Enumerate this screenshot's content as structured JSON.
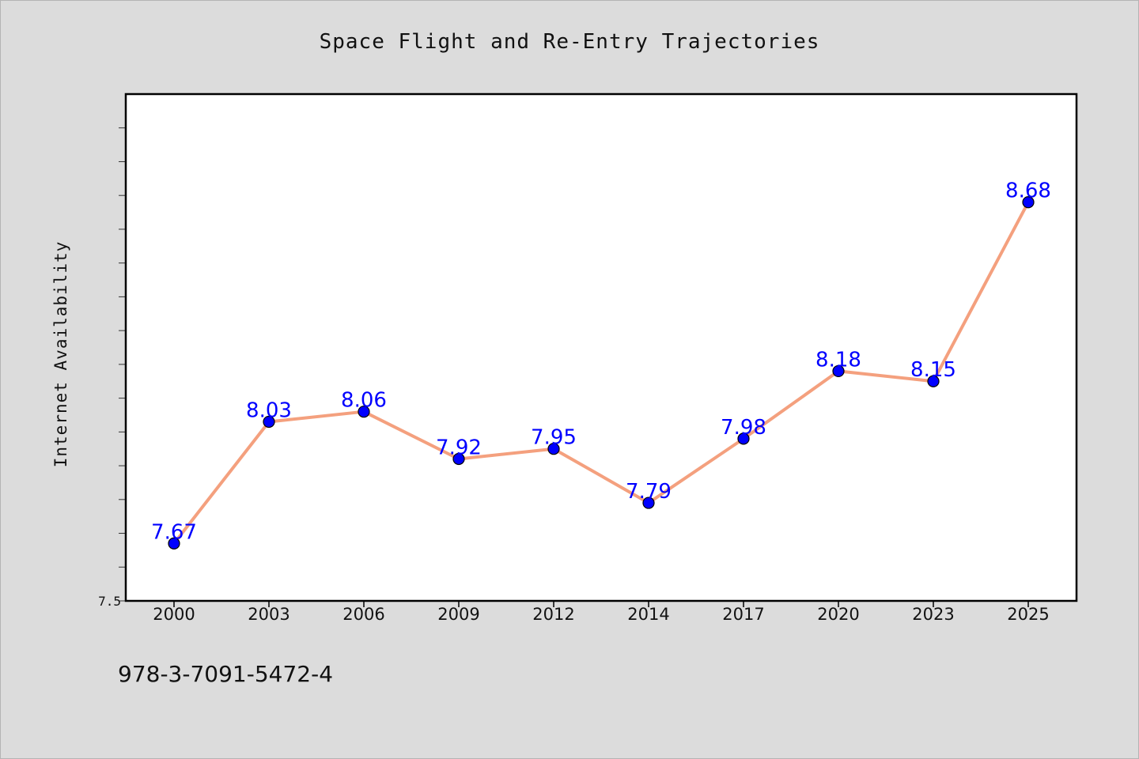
{
  "chart_data": {
    "type": "line",
    "title": "Space Flight and Re-Entry Trajectories",
    "xlabel": "",
    "ylabel": "Internet Availability",
    "categories": [
      "2000",
      "2003",
      "2006",
      "2009",
      "2012",
      "2014",
      "2017",
      "2020",
      "2023",
      "2025"
    ],
    "series": [
      {
        "values": [
          7.67,
          8.03,
          8.06,
          7.92,
          7.95,
          7.79,
          7.98,
          8.18,
          8.15,
          8.68
        ],
        "labels": [
          "7.67",
          "8.03",
          "8.06",
          "7.92",
          "7.95",
          "7.79",
          "7.98",
          "8.18",
          "8.15",
          "8.68"
        ],
        "line_color": "#f4a07e",
        "marker_color": "#0000ff"
      }
    ],
    "ylim": [
      7.5,
      9.0
    ],
    "y_tick_labels": [
      "7.5"
    ],
    "grid": false,
    "legend": "none",
    "plot_background": "#ffffff",
    "figure_background": "#dcdcdc"
  },
  "footer": {
    "isbn": "978-3-7091-5472-4"
  }
}
